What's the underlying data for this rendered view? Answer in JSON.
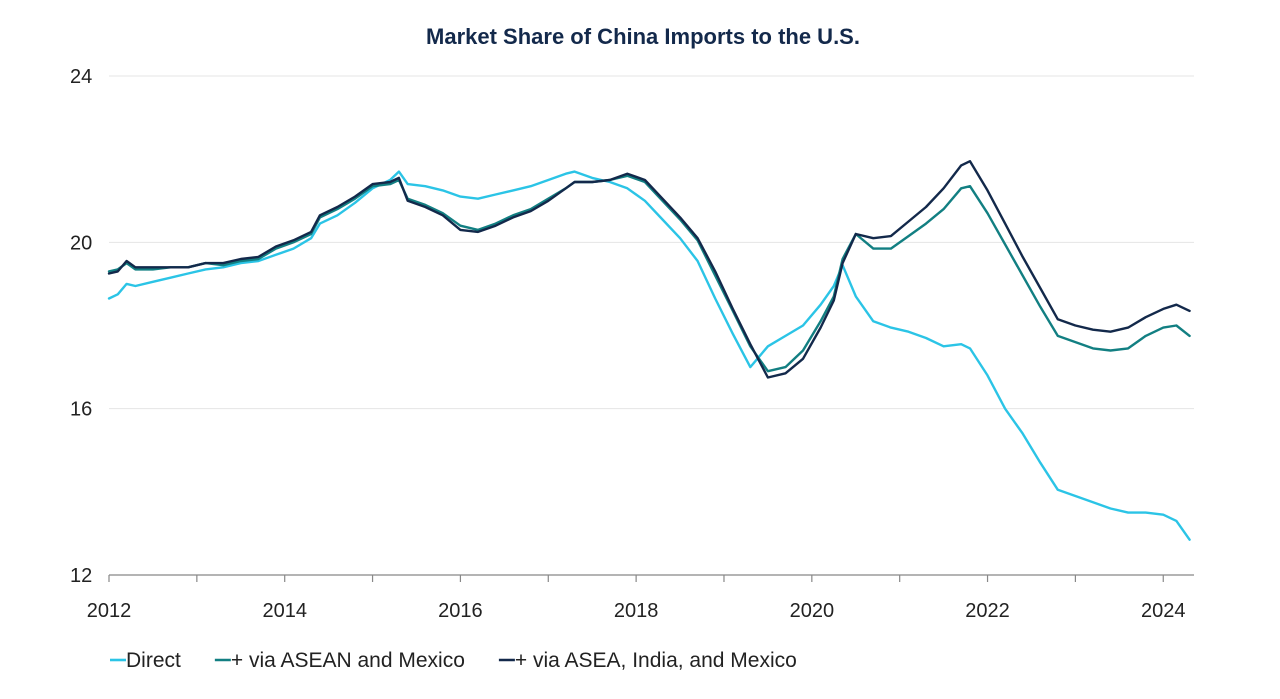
{
  "chart_data": {
    "type": "line",
    "title": "Market Share of China Imports to the U.S.",
    "xlabel": "",
    "ylabel": "",
    "xlim": [
      2012,
      2024.35
    ],
    "ylim": [
      12,
      24
    ],
    "yticks": [
      12,
      16,
      20,
      24
    ],
    "xticks": [
      2012,
      2014,
      2016,
      2018,
      2020,
      2022,
      2024
    ],
    "grid": true,
    "legend_position": "bottom-left",
    "series": [
      {
        "name": "Direct",
        "legend_label": "Direct",
        "color": "#2bc4e6",
        "points": [
          [
            2012.0,
            18.65
          ],
          [
            2012.1,
            18.75
          ],
          [
            2012.2,
            19.0
          ],
          [
            2012.3,
            18.95
          ],
          [
            2012.5,
            19.05
          ],
          [
            2012.7,
            19.15
          ],
          [
            2012.9,
            19.25
          ],
          [
            2013.1,
            19.35
          ],
          [
            2013.3,
            19.4
          ],
          [
            2013.5,
            19.5
          ],
          [
            2013.7,
            19.55
          ],
          [
            2013.9,
            19.7
          ],
          [
            2014.1,
            19.85
          ],
          [
            2014.3,
            20.1
          ],
          [
            2014.4,
            20.45
          ],
          [
            2014.6,
            20.65
          ],
          [
            2014.8,
            20.95
          ],
          [
            2015.0,
            21.3
          ],
          [
            2015.2,
            21.5
          ],
          [
            2015.3,
            21.7
          ],
          [
            2015.4,
            21.4
          ],
          [
            2015.6,
            21.35
          ],
          [
            2015.8,
            21.25
          ],
          [
            2016.0,
            21.1
          ],
          [
            2016.2,
            21.05
          ],
          [
            2016.4,
            21.15
          ],
          [
            2016.6,
            21.25
          ],
          [
            2016.8,
            21.35
          ],
          [
            2017.0,
            21.5
          ],
          [
            2017.2,
            21.65
          ],
          [
            2017.3,
            21.7
          ],
          [
            2017.5,
            21.55
          ],
          [
            2017.7,
            21.45
          ],
          [
            2017.9,
            21.3
          ],
          [
            2018.1,
            21.0
          ],
          [
            2018.3,
            20.55
          ],
          [
            2018.5,
            20.1
          ],
          [
            2018.7,
            19.55
          ],
          [
            2018.9,
            18.65
          ],
          [
            2019.1,
            17.8
          ],
          [
            2019.3,
            17.0
          ],
          [
            2019.5,
            17.5
          ],
          [
            2019.7,
            17.75
          ],
          [
            2019.9,
            18.0
          ],
          [
            2020.1,
            18.5
          ],
          [
            2020.25,
            18.95
          ],
          [
            2020.35,
            19.45
          ],
          [
            2020.5,
            18.7
          ],
          [
            2020.7,
            18.1
          ],
          [
            2020.9,
            17.95
          ],
          [
            2021.1,
            17.85
          ],
          [
            2021.3,
            17.7
          ],
          [
            2021.5,
            17.5
          ],
          [
            2021.7,
            17.55
          ],
          [
            2021.8,
            17.45
          ],
          [
            2022.0,
            16.8
          ],
          [
            2022.2,
            16.0
          ],
          [
            2022.4,
            15.4
          ],
          [
            2022.6,
            14.7
          ],
          [
            2022.8,
            14.05
          ],
          [
            2023.0,
            13.9
          ],
          [
            2023.2,
            13.75
          ],
          [
            2023.4,
            13.6
          ],
          [
            2023.6,
            13.5
          ],
          [
            2023.8,
            13.5
          ],
          [
            2024.0,
            13.45
          ],
          [
            2024.15,
            13.3
          ],
          [
            2024.3,
            12.85
          ]
        ]
      },
      {
        "name": "+ via ASEAN and Mexico",
        "legend_label": "+ via ASEAN and Mexico",
        "color": "#127f82",
        "points": [
          [
            2012.0,
            19.3
          ],
          [
            2012.1,
            19.35
          ],
          [
            2012.2,
            19.5
          ],
          [
            2012.3,
            19.35
          ],
          [
            2012.5,
            19.35
          ],
          [
            2012.7,
            19.4
          ],
          [
            2012.9,
            19.4
          ],
          [
            2013.1,
            19.5
          ],
          [
            2013.3,
            19.45
          ],
          [
            2013.5,
            19.55
          ],
          [
            2013.7,
            19.6
          ],
          [
            2013.9,
            19.85
          ],
          [
            2014.1,
            20.0
          ],
          [
            2014.3,
            20.2
          ],
          [
            2014.4,
            20.6
          ],
          [
            2014.6,
            20.8
          ],
          [
            2014.8,
            21.05
          ],
          [
            2015.0,
            21.35
          ],
          [
            2015.2,
            21.4
          ],
          [
            2015.3,
            21.5
          ],
          [
            2015.4,
            21.05
          ],
          [
            2015.6,
            20.9
          ],
          [
            2015.8,
            20.7
          ],
          [
            2016.0,
            20.4
          ],
          [
            2016.2,
            20.3
          ],
          [
            2016.4,
            20.45
          ],
          [
            2016.6,
            20.65
          ],
          [
            2016.8,
            20.8
          ],
          [
            2017.0,
            21.05
          ],
          [
            2017.2,
            21.3
          ],
          [
            2017.3,
            21.45
          ],
          [
            2017.5,
            21.45
          ],
          [
            2017.7,
            21.5
          ],
          [
            2017.9,
            21.6
          ],
          [
            2018.1,
            21.45
          ],
          [
            2018.3,
            21.0
          ],
          [
            2018.5,
            20.55
          ],
          [
            2018.7,
            20.05
          ],
          [
            2018.9,
            19.2
          ],
          [
            2019.1,
            18.35
          ],
          [
            2019.3,
            17.5
          ],
          [
            2019.5,
            16.9
          ],
          [
            2019.7,
            17.0
          ],
          [
            2019.9,
            17.4
          ],
          [
            2020.1,
            18.1
          ],
          [
            2020.25,
            18.7
          ],
          [
            2020.35,
            19.6
          ],
          [
            2020.5,
            20.2
          ],
          [
            2020.7,
            19.85
          ],
          [
            2020.9,
            19.85
          ],
          [
            2021.1,
            20.15
          ],
          [
            2021.3,
            20.45
          ],
          [
            2021.5,
            20.8
          ],
          [
            2021.7,
            21.3
          ],
          [
            2021.8,
            21.35
          ],
          [
            2022.0,
            20.7
          ],
          [
            2022.2,
            19.95
          ],
          [
            2022.4,
            19.2
          ],
          [
            2022.6,
            18.45
          ],
          [
            2022.8,
            17.75
          ],
          [
            2023.0,
            17.6
          ],
          [
            2023.2,
            17.45
          ],
          [
            2023.4,
            17.4
          ],
          [
            2023.6,
            17.45
          ],
          [
            2023.8,
            17.75
          ],
          [
            2024.0,
            17.95
          ],
          [
            2024.15,
            18.0
          ],
          [
            2024.3,
            17.75
          ]
        ]
      },
      {
        "name": "+ via ASEA, India, and Mexico",
        "legend_label": "+ via ASEA, India, and Mexico",
        "color": "#13294b",
        "points": [
          [
            2012.0,
            19.25
          ],
          [
            2012.1,
            19.3
          ],
          [
            2012.2,
            19.55
          ],
          [
            2012.3,
            19.4
          ],
          [
            2012.5,
            19.4
          ],
          [
            2012.7,
            19.4
          ],
          [
            2012.9,
            19.4
          ],
          [
            2013.1,
            19.5
          ],
          [
            2013.3,
            19.5
          ],
          [
            2013.5,
            19.6
          ],
          [
            2013.7,
            19.65
          ],
          [
            2013.9,
            19.9
          ],
          [
            2014.1,
            20.05
          ],
          [
            2014.3,
            20.25
          ],
          [
            2014.4,
            20.65
          ],
          [
            2014.6,
            20.85
          ],
          [
            2014.8,
            21.1
          ],
          [
            2015.0,
            21.4
          ],
          [
            2015.2,
            21.45
          ],
          [
            2015.3,
            21.55
          ],
          [
            2015.4,
            21.0
          ],
          [
            2015.6,
            20.85
          ],
          [
            2015.8,
            20.65
          ],
          [
            2016.0,
            20.3
          ],
          [
            2016.2,
            20.25
          ],
          [
            2016.4,
            20.4
          ],
          [
            2016.6,
            20.6
          ],
          [
            2016.8,
            20.75
          ],
          [
            2017.0,
            21.0
          ],
          [
            2017.2,
            21.3
          ],
          [
            2017.3,
            21.45
          ],
          [
            2017.5,
            21.45
          ],
          [
            2017.7,
            21.5
          ],
          [
            2017.9,
            21.65
          ],
          [
            2018.1,
            21.5
          ],
          [
            2018.3,
            21.05
          ],
          [
            2018.5,
            20.6
          ],
          [
            2018.7,
            20.1
          ],
          [
            2018.9,
            19.3
          ],
          [
            2019.1,
            18.4
          ],
          [
            2019.3,
            17.55
          ],
          [
            2019.5,
            16.75
          ],
          [
            2019.7,
            16.85
          ],
          [
            2019.9,
            17.2
          ],
          [
            2020.1,
            17.95
          ],
          [
            2020.25,
            18.6
          ],
          [
            2020.35,
            19.5
          ],
          [
            2020.5,
            20.2
          ],
          [
            2020.7,
            20.1
          ],
          [
            2020.9,
            20.15
          ],
          [
            2021.1,
            20.5
          ],
          [
            2021.3,
            20.85
          ],
          [
            2021.5,
            21.3
          ],
          [
            2021.7,
            21.85
          ],
          [
            2021.8,
            21.95
          ],
          [
            2022.0,
            21.25
          ],
          [
            2022.2,
            20.45
          ],
          [
            2022.4,
            19.65
          ],
          [
            2022.6,
            18.9
          ],
          [
            2022.8,
            18.15
          ],
          [
            2023.0,
            18.0
          ],
          [
            2023.2,
            17.9
          ],
          [
            2023.4,
            17.85
          ],
          [
            2023.6,
            17.95
          ],
          [
            2023.8,
            18.2
          ],
          [
            2024.0,
            18.4
          ],
          [
            2024.15,
            18.5
          ],
          [
            2024.3,
            18.35
          ]
        ]
      }
    ]
  }
}
